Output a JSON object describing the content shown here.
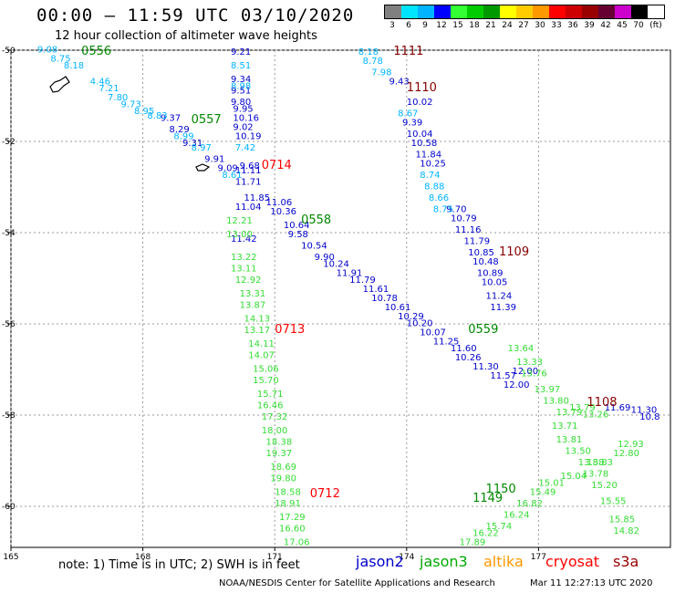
{
  "header": {
    "title": "00:00 – 11:59 UTC 03/10/2020",
    "subtitle": "12 hour collection of altimeter wave heights"
  },
  "legend": {
    "unit": "(ft)",
    "bins": [
      {
        "label": "3",
        "color": "#808080"
      },
      {
        "label": "6",
        "color": "#00e5ff"
      },
      {
        "label": "9",
        "color": "#00b4ff"
      },
      {
        "label": "12",
        "color": "#0000ff"
      },
      {
        "label": "15",
        "color": "#33ff33"
      },
      {
        "label": "18",
        "color": "#00cc00"
      },
      {
        "label": "21",
        "color": "#009900"
      },
      {
        "label": "24",
        "color": "#ffff00"
      },
      {
        "label": "27",
        "color": "#ffcc00"
      },
      {
        "label": "30",
        "color": "#ff9900"
      },
      {
        "label": "33",
        "color": "#ff0000"
      },
      {
        "label": "36",
        "color": "#cc0000"
      },
      {
        "label": "39",
        "color": "#990000"
      },
      {
        "label": "42",
        "color": "#660033"
      },
      {
        "label": "45",
        "color": "#cc00cc"
      },
      {
        "label": "70",
        "color": "#000000"
      }
    ]
  },
  "axes": {
    "lon_ticks": [
      "165",
      "168",
      "171",
      "174",
      "177"
    ],
    "lat_ticks": [
      "-50",
      "-52",
      "-54",
      "-56",
      "-58",
      "-60"
    ]
  },
  "footer": {
    "note": "note:  1) Time is in UTC;  2) SWH is in feet",
    "satellites": [
      {
        "name": "jason2",
        "color": "#0000cc"
      },
      {
        "name": "jason3",
        "color": "#00aa00"
      },
      {
        "name": "altika",
        "color": "#ff9900"
      },
      {
        "name": "cryosat",
        "color": "#ff0000"
      },
      {
        "name": "s3a",
        "color": "#990000"
      }
    ],
    "credit": "NOAA/NESDIS Center for Satellite Applications and Research",
    "stamp": "Mar 11 12:27:13 UTC 2020"
  },
  "map_data": {
    "time_labels": [
      {
        "text": "0556",
        "color": "#008800",
        "lon": 166.6,
        "lat": -50.1
      },
      {
        "text": "0557",
        "color": "#008800",
        "lon": 169.1,
        "lat": -51.6
      },
      {
        "text": "0714",
        "color": "#ff0000",
        "lon": 170.7,
        "lat": -52.6
      },
      {
        "text": "0713",
        "color": "#ff0000",
        "lon": 171.0,
        "lat": -56.2
      },
      {
        "text": "0712",
        "color": "#ff0000",
        "lon": 171.8,
        "lat": -59.8
      },
      {
        "text": "0558",
        "color": "#008800",
        "lon": 171.6,
        "lat": -53.8
      },
      {
        "text": "0559",
        "color": "#008800",
        "lon": 175.4,
        "lat": -56.2
      },
      {
        "text": "1111",
        "color": "#880000",
        "lon": 173.7,
        "lat": -50.1
      },
      {
        "text": "1110",
        "color": "#880000",
        "lon": 174.0,
        "lat": -50.9
      },
      {
        "text": "1109",
        "color": "#880000",
        "lon": 176.1,
        "lat": -54.5
      },
      {
        "text": "1108",
        "color": "#880000",
        "lon": 178.1,
        "lat": -57.8
      },
      {
        "text": "1150",
        "color": "#008800",
        "lon": 175.8,
        "lat": -59.7
      },
      {
        "text": "1149",
        "color": "#008800",
        "lon": 175.5,
        "lat": -59.9
      }
    ],
    "tracks": [
      {
        "color": "#0000cc",
        "points": [
          {
            "lon": 168.4,
            "lat": -51.55,
            "v": "9.37"
          },
          {
            "lon": 168.6,
            "lat": -51.8,
            "v": "8.29"
          },
          {
            "lon": 168.9,
            "lat": -52.1,
            "v": "9.31"
          },
          {
            "lon": 169.4,
            "lat": -52.45,
            "v": "9.91"
          },
          {
            "lon": 169.7,
            "lat": -52.65,
            "v": "9.09"
          },
          {
            "lon": 170.1,
            "lat": -52.7,
            "v": "11.11"
          },
          {
            "lon": 170.1,
            "lat": -52.95,
            "v": "11.71"
          },
          {
            "lon": 170.3,
            "lat": -53.3,
            "v": "11.85"
          },
          {
            "lon": 170.1,
            "lat": -53.5,
            "v": "11.04"
          },
          {
            "lon": 170.8,
            "lat": -53.4,
            "v": "11.06"
          },
          {
            "lon": 170.9,
            "lat": -53.6,
            "v": "10.36"
          },
          {
            "lon": 171.2,
            "lat": -53.9,
            "v": "10.64"
          },
          {
            "lon": 171.3,
            "lat": -54.1,
            "v": "9.58"
          },
          {
            "lon": 171.6,
            "lat": -54.35,
            "v": "10.54"
          },
          {
            "lon": 171.9,
            "lat": -54.6,
            "v": "9.90"
          },
          {
            "lon": 172.1,
            "lat": -54.75,
            "v": "10.24"
          },
          {
            "lon": 172.4,
            "lat": -54.95,
            "v": "11.91"
          },
          {
            "lon": 172.7,
            "lat": -55.1,
            "v": "11.79"
          },
          {
            "lon": 173.0,
            "lat": -55.3,
            "v": "11.61"
          },
          {
            "lon": 173.2,
            "lat": -55.5,
            "v": "10.78"
          },
          {
            "lon": 173.5,
            "lat": -55.7,
            "v": "10.61"
          },
          {
            "lon": 173.8,
            "lat": -55.9,
            "v": "10.29"
          },
          {
            "lon": 174.0,
            "lat": -56.05,
            "v": "10.20"
          },
          {
            "lon": 174.3,
            "lat": -56.25,
            "v": "10.07"
          },
          {
            "lon": 174.6,
            "lat": -56.45,
            "v": "11.25"
          },
          {
            "lon": 175.0,
            "lat": -56.6,
            "v": "11.60"
          },
          {
            "lon": 175.1,
            "lat": -56.8,
            "v": "10.26"
          },
          {
            "lon": 175.5,
            "lat": -57.0,
            "v": "11.30"
          },
          {
            "lon": 175.9,
            "lat": -57.2,
            "v": "11.57"
          },
          {
            "lon": 176.2,
            "lat": -57.4,
            "v": "12.00"
          },
          {
            "lon": 176.4,
            "lat": -57.1,
            "v": "12.00"
          },
          {
            "lon": 170.0,
            "lat": -50.1,
            "v": "9.21"
          },
          {
            "lon": 170.0,
            "lat": -50.7,
            "v": "9.34"
          },
          {
            "lon": 170.0,
            "lat": -50.95,
            "v": "9.51"
          },
          {
            "lon": 170.0,
            "lat": -51.2,
            "v": "9.80"
          },
          {
            "lon": 170.05,
            "lat": -51.35,
            "v": "9.95"
          },
          {
            "lon": 170.05,
            "lat": -51.55,
            "v": "10.16"
          },
          {
            "lon": 170.05,
            "lat": -51.75,
            "v": "9.02"
          },
          {
            "lon": 170.1,
            "lat": -51.95,
            "v": "10.19"
          },
          {
            "lon": 170.2,
            "lat": -52.6,
            "v": "9.68"
          },
          {
            "lon": 170.0,
            "lat": -54.2,
            "v": "11.42"
          },
          {
            "lon": 174.0,
            "lat": -51.2,
            "v": "10.02"
          },
          {
            "lon": 173.9,
            "lat": -51.65,
            "v": "9.39"
          },
          {
            "lon": 174.0,
            "lat": -51.9,
            "v": "10.04"
          },
          {
            "lon": 174.1,
            "lat": -52.1,
            "v": "10.58"
          },
          {
            "lon": 174.2,
            "lat": -52.35,
            "v": "11.84"
          },
          {
            "lon": 174.3,
            "lat": -52.55,
            "v": "10.25"
          },
          {
            "lon": 174.9,
            "lat": -53.55,
            "v": "9.70"
          },
          {
            "lon": 175.0,
            "lat": -53.75,
            "v": "10.79"
          },
          {
            "lon": 175.1,
            "lat": -54.0,
            "v": "11.16"
          },
          {
            "lon": 175.3,
            "lat": -54.25,
            "v": "11.79"
          },
          {
            "lon": 175.4,
            "lat": -54.5,
            "v": "10.85"
          },
          {
            "lon": 175.5,
            "lat": -54.7,
            "v": "10.48"
          },
          {
            "lon": 175.6,
            "lat": -54.95,
            "v": "10.89"
          },
          {
            "lon": 175.7,
            "lat": -55.15,
            "v": "10.05"
          },
          {
            "lon": 175.8,
            "lat": -55.45,
            "v": "11.24"
          },
          {
            "lon": 175.9,
            "lat": -55.7,
            "v": "11.39"
          },
          {
            "lon": 173.6,
            "lat": -50.75,
            "v": "9.43"
          },
          {
            "lon": 178.5,
            "lat": -57.9,
            "v": "11.69"
          },
          {
            "lon": 179.1,
            "lat": -57.95,
            "v": "11.30"
          },
          {
            "lon": 179.3,
            "lat": -58.1,
            "v": "10.8"
          }
        ]
      },
      {
        "color": "#00b4ff",
        "points": [
          {
            "lon": 165.6,
            "lat": -50.05,
            "v": "9.08"
          },
          {
            "lon": 165.9,
            "lat": -50.25,
            "v": "8.75"
          },
          {
            "lon": 166.2,
            "lat": -50.4,
            "v": "8.18"
          },
          {
            "lon": 166.8,
            "lat": -50.75,
            "v": "4.46"
          },
          {
            "lon": 167.0,
            "lat": -50.9,
            "v": "7.21"
          },
          {
            "lon": 167.2,
            "lat": -51.1,
            "v": "7.80"
          },
          {
            "lon": 167.5,
            "lat": -51.25,
            "v": "9.73"
          },
          {
            "lon": 167.8,
            "lat": -51.4,
            "v": "8.95"
          },
          {
            "lon": 168.1,
            "lat": -51.5,
            "v": "8.83"
          },
          {
            "lon": 168.7,
            "lat": -51.95,
            "v": "8.99"
          },
          {
            "lon": 169.1,
            "lat": -52.2,
            "v": "8.97"
          },
          {
            "lon": 169.8,
            "lat": -52.8,
            "v": "8.61"
          },
          {
            "lon": 170.0,
            "lat": -50.4,
            "v": "8.51"
          },
          {
            "lon": 170.0,
            "lat": -50.85,
            "v": "8.98"
          },
          {
            "lon": 170.1,
            "lat": -52.2,
            "v": "7.42"
          },
          {
            "lon": 172.9,
            "lat": -50.1,
            "v": "8.18"
          },
          {
            "lon": 173.0,
            "lat": -50.3,
            "v": "8.78"
          },
          {
            "lon": 173.2,
            "lat": -50.55,
            "v": "7.98"
          },
          {
            "lon": 173.8,
            "lat": -51.45,
            "v": "8.67"
          },
          {
            "lon": 174.3,
            "lat": -52.8,
            "v": "8.74"
          },
          {
            "lon": 174.4,
            "lat": -53.05,
            "v": "8.88"
          },
          {
            "lon": 174.5,
            "lat": -53.3,
            "v": "8.66"
          },
          {
            "lon": 174.6,
            "lat": -53.55,
            "v": "8.75"
          }
        ]
      },
      {
        "color": "#33dd33",
        "points": [
          {
            "lon": 169.9,
            "lat": -53.8,
            "v": "12.21"
          },
          {
            "lon": 169.9,
            "lat": -54.1,
            "v": "13.00"
          },
          {
            "lon": 170.0,
            "lat": -54.6,
            "v": "13.22"
          },
          {
            "lon": 170.0,
            "lat": -54.85,
            "v": "13.11"
          },
          {
            "lon": 170.1,
            "lat": -55.1,
            "v": "12.92"
          },
          {
            "lon": 170.2,
            "lat": -55.4,
            "v": "13.31"
          },
          {
            "lon": 170.2,
            "lat": -55.65,
            "v": "13.87"
          },
          {
            "lon": 170.3,
            "lat": -55.95,
            "v": "14.13"
          },
          {
            "lon": 170.3,
            "lat": -56.2,
            "v": "13.17"
          },
          {
            "lon": 170.4,
            "lat": -56.5,
            "v": "14.11"
          },
          {
            "lon": 170.4,
            "lat": -56.75,
            "v": "14.07"
          },
          {
            "lon": 170.5,
            "lat": -57.05,
            "v": "15.06"
          },
          {
            "lon": 170.5,
            "lat": -57.3,
            "v": "15.70"
          },
          {
            "lon": 170.6,
            "lat": -57.6,
            "v": "15.71"
          },
          {
            "lon": 170.6,
            "lat": -57.85,
            "v": "16.46"
          },
          {
            "lon": 170.7,
            "lat": -58.1,
            "v": "17.32"
          },
          {
            "lon": 170.7,
            "lat": -58.4,
            "v": "18.00"
          },
          {
            "lon": 170.8,
            "lat": -58.65,
            "v": "18.38"
          },
          {
            "lon": 170.8,
            "lat": -58.9,
            "v": "19.37"
          },
          {
            "lon": 170.9,
            "lat": -59.2,
            "v": "18.69"
          },
          {
            "lon": 170.9,
            "lat": -59.45,
            "v": "19.80"
          },
          {
            "lon": 171.0,
            "lat": -59.75,
            "v": "18.58"
          },
          {
            "lon": 171.0,
            "lat": -60.0,
            "v": "18.91"
          },
          {
            "lon": 171.1,
            "lat": -60.3,
            "v": "17.29"
          },
          {
            "lon": 171.1,
            "lat": -60.55,
            "v": "16.60"
          },
          {
            "lon": 171.2,
            "lat": -60.85,
            "v": "17.06"
          },
          {
            "lon": 176.3,
            "lat": -56.6,
            "v": "13.64"
          },
          {
            "lon": 176.5,
            "lat": -56.9,
            "v": "13.33"
          },
          {
            "lon": 176.6,
            "lat": -57.15,
            "v": "13.76"
          },
          {
            "lon": 176.9,
            "lat": -57.5,
            "v": "13.97"
          },
          {
            "lon": 177.1,
            "lat": -57.75,
            "v": "13.80"
          },
          {
            "lon": 177.4,
            "lat": -58.0,
            "v": "13.79"
          },
          {
            "lon": 177.7,
            "lat": -57.9,
            "v": "13.79"
          },
          {
            "lon": 178.0,
            "lat": -58.05,
            "v": "13.26"
          },
          {
            "lon": 177.3,
            "lat": -58.3,
            "v": "13.71"
          },
          {
            "lon": 177.4,
            "lat": -58.6,
            "v": "13.81"
          },
          {
            "lon": 177.6,
            "lat": -58.85,
            "v": "13.50"
          },
          {
            "lon": 177.9,
            "lat": -59.1,
            "v": "13.88"
          },
          {
            "lon": 178.1,
            "lat": -59.1,
            "v": "13.83"
          },
          {
            "lon": 178.0,
            "lat": -59.35,
            "v": "13.78"
          },
          {
            "lon": 178.7,
            "lat": -58.9,
            "v": "12.80"
          },
          {
            "lon": 178.8,
            "lat": -58.7,
            "v": "12.93"
          },
          {
            "lon": 177.5,
            "lat": -59.4,
            "v": "15.04"
          },
          {
            "lon": 177.0,
            "lat": -59.55,
            "v": "15.01"
          },
          {
            "lon": 176.8,
            "lat": -59.75,
            "v": "15.49"
          },
          {
            "lon": 176.5,
            "lat": -60.0,
            "v": "16.82"
          },
          {
            "lon": 176.2,
            "lat": -60.25,
            "v": "16.24"
          },
          {
            "lon": 175.8,
            "lat": -60.5,
            "v": "15.74"
          },
          {
            "lon": 175.5,
            "lat": -60.65,
            "v": "16.22"
          },
          {
            "lon": 175.2,
            "lat": -60.85,
            "v": "17.89"
          },
          {
            "lon": 178.2,
            "lat": -59.6,
            "v": "15.20"
          },
          {
            "lon": 178.4,
            "lat": -59.95,
            "v": "15.55"
          },
          {
            "lon": 178.6,
            "lat": -60.35,
            "v": "15.85"
          },
          {
            "lon": 178.7,
            "lat": -60.6,
            "v": "14.82"
          }
        ]
      }
    ]
  }
}
